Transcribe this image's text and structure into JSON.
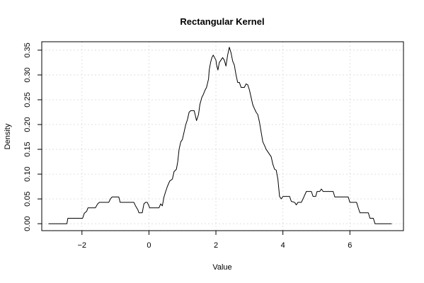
{
  "chart_data": {
    "type": "line",
    "title": "Rectangular Kernel",
    "xlabel": "Value",
    "ylabel": "Density",
    "xlim": [
      -3.2,
      7.6
    ],
    "ylim": [
      -0.014,
      0.367
    ],
    "grid": true,
    "x_ticks": [
      -2,
      0,
      2,
      4,
      6
    ],
    "x_tick_labels": [
      "−2",
      "0",
      "2",
      "4",
      "6"
    ],
    "y_ticks": [
      0.0,
      0.05,
      0.1,
      0.15,
      0.2,
      0.25,
      0.3,
      0.35
    ],
    "y_tick_labels": [
      "0.00",
      "0.05",
      "0.10",
      "0.15",
      "0.20",
      "0.25",
      "0.30",
      "0.35"
    ],
    "series": [
      {
        "color": "#000000",
        "points": [
          [
            -3.0,
            0.0
          ],
          [
            -2.45,
            0.0
          ],
          [
            -2.42,
            0.011
          ],
          [
            -1.98,
            0.011
          ],
          [
            -1.93,
            0.021
          ],
          [
            -1.86,
            0.025
          ],
          [
            -1.82,
            0.032
          ],
          [
            -1.6,
            0.032
          ],
          [
            -1.53,
            0.04
          ],
          [
            -1.48,
            0.043
          ],
          [
            -1.2,
            0.043
          ],
          [
            -1.15,
            0.05
          ],
          [
            -1.1,
            0.054
          ],
          [
            -0.9,
            0.054
          ],
          [
            -0.86,
            0.043
          ],
          [
            -0.45,
            0.043
          ],
          [
            -0.4,
            0.036
          ],
          [
            -0.33,
            0.028
          ],
          [
            -0.3,
            0.022
          ],
          [
            -0.2,
            0.022
          ],
          [
            -0.15,
            0.04
          ],
          [
            -0.1,
            0.043
          ],
          [
            -0.05,
            0.043
          ],
          [
            0.0,
            0.036
          ],
          [
            0.02,
            0.032
          ],
          [
            0.3,
            0.032
          ],
          [
            0.35,
            0.04
          ],
          [
            0.4,
            0.036
          ],
          [
            0.45,
            0.054
          ],
          [
            0.5,
            0.065
          ],
          [
            0.55,
            0.075
          ],
          [
            0.62,
            0.086
          ],
          [
            0.7,
            0.09
          ],
          [
            0.75,
            0.105
          ],
          [
            0.82,
            0.11
          ],
          [
            0.86,
            0.125
          ],
          [
            0.9,
            0.15
          ],
          [
            0.95,
            0.165
          ],
          [
            1.0,
            0.17
          ],
          [
            1.05,
            0.185
          ],
          [
            1.1,
            0.2
          ],
          [
            1.15,
            0.21
          ],
          [
            1.2,
            0.225
          ],
          [
            1.25,
            0.228
          ],
          [
            1.35,
            0.228
          ],
          [
            1.38,
            0.22
          ],
          [
            1.42,
            0.208
          ],
          [
            1.48,
            0.22
          ],
          [
            1.52,
            0.24
          ],
          [
            1.58,
            0.255
          ],
          [
            1.62,
            0.26
          ],
          [
            1.68,
            0.27
          ],
          [
            1.72,
            0.275
          ],
          [
            1.78,
            0.292
          ],
          [
            1.8,
            0.31
          ],
          [
            1.84,
            0.325
          ],
          [
            1.88,
            0.335
          ],
          [
            1.92,
            0.34
          ],
          [
            1.96,
            0.335
          ],
          [
            2.0,
            0.33
          ],
          [
            2.02,
            0.32
          ],
          [
            2.06,
            0.31
          ],
          [
            2.1,
            0.325
          ],
          [
            2.15,
            0.33
          ],
          [
            2.2,
            0.335
          ],
          [
            2.25,
            0.33
          ],
          [
            2.3,
            0.318
          ],
          [
            2.35,
            0.34
          ],
          [
            2.4,
            0.356
          ],
          [
            2.45,
            0.345
          ],
          [
            2.5,
            0.328
          ],
          [
            2.55,
            0.32
          ],
          [
            2.6,
            0.3
          ],
          [
            2.65,
            0.285
          ],
          [
            2.7,
            0.285
          ],
          [
            2.75,
            0.275
          ],
          [
            2.85,
            0.275
          ],
          [
            2.9,
            0.282
          ],
          [
            2.95,
            0.28
          ],
          [
            3.0,
            0.27
          ],
          [
            3.05,
            0.255
          ],
          [
            3.1,
            0.24
          ],
          [
            3.15,
            0.232
          ],
          [
            3.2,
            0.225
          ],
          [
            3.25,
            0.22
          ],
          [
            3.3,
            0.205
          ],
          [
            3.35,
            0.185
          ],
          [
            3.4,
            0.165
          ],
          [
            3.45,
            0.158
          ],
          [
            3.5,
            0.15
          ],
          [
            3.55,
            0.145
          ],
          [
            3.6,
            0.14
          ],
          [
            3.65,
            0.135
          ],
          [
            3.7,
            0.12
          ],
          [
            3.75,
            0.11
          ],
          [
            3.8,
            0.108
          ],
          [
            3.85,
            0.09
          ],
          [
            3.9,
            0.055
          ],
          [
            3.95,
            0.05
          ],
          [
            4.0,
            0.055
          ],
          [
            4.2,
            0.055
          ],
          [
            4.25,
            0.045
          ],
          [
            4.35,
            0.043
          ],
          [
            4.4,
            0.038
          ],
          [
            4.45,
            0.043
          ],
          [
            4.55,
            0.043
          ],
          [
            4.6,
            0.05
          ],
          [
            4.7,
            0.065
          ],
          [
            4.85,
            0.065
          ],
          [
            4.9,
            0.055
          ],
          [
            4.98,
            0.055
          ],
          [
            5.02,
            0.065
          ],
          [
            5.1,
            0.065
          ],
          [
            5.15,
            0.07
          ],
          [
            5.2,
            0.065
          ],
          [
            5.5,
            0.065
          ],
          [
            5.55,
            0.054
          ],
          [
            5.95,
            0.054
          ],
          [
            6.0,
            0.043
          ],
          [
            6.2,
            0.043
          ],
          [
            6.25,
            0.032
          ],
          [
            6.3,
            0.022
          ],
          [
            6.55,
            0.022
          ],
          [
            6.6,
            0.011
          ],
          [
            6.7,
            0.011
          ],
          [
            6.75,
            0.0
          ],
          [
            7.25,
            0.0
          ]
        ]
      }
    ]
  }
}
